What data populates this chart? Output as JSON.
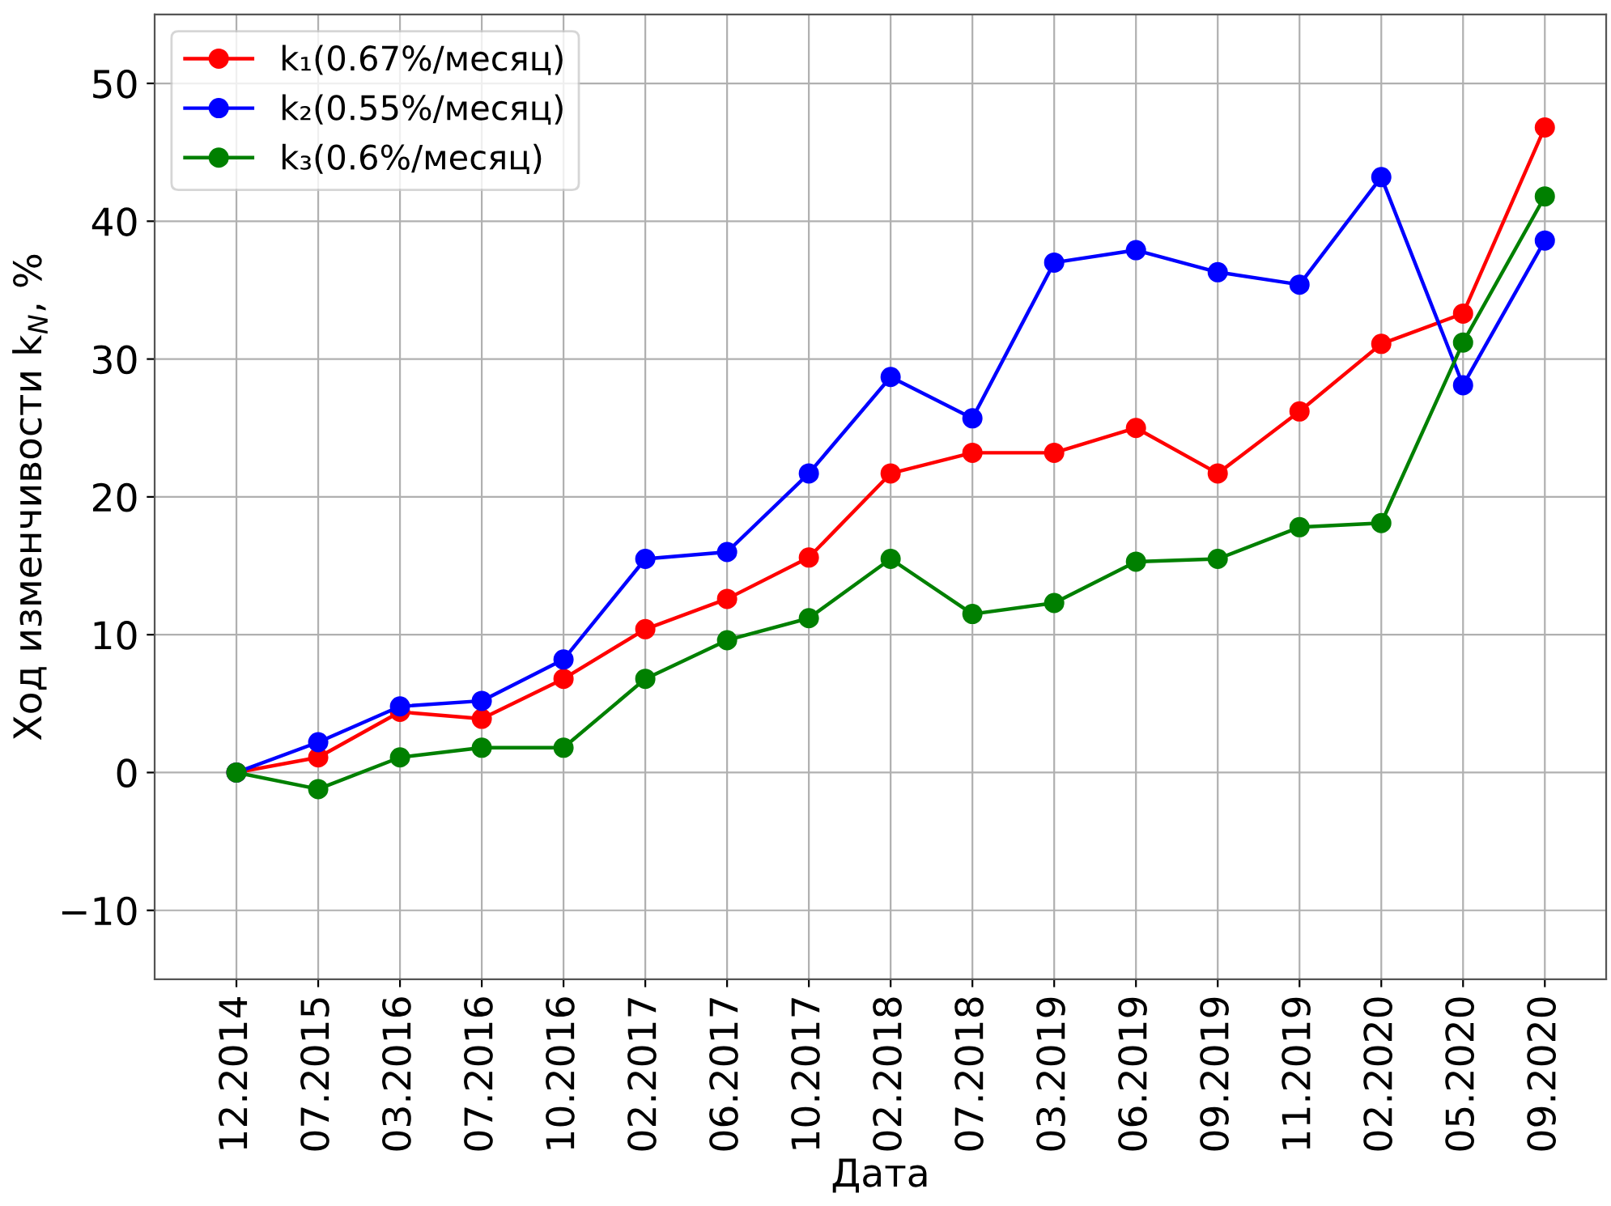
{
  "chart_data": {
    "type": "line",
    "xlabel": "Дата",
    "ylabel": "Ход изменчивости k$_{N}$, %",
    "categories": [
      "12.2014",
      "07.2015",
      "03.2016",
      "07.2016",
      "10.2016",
      "02.2017",
      "06.2017",
      "10.2017",
      "02.2018",
      "07.2018",
      "03.2019",
      "06.2019",
      "09.2019",
      "11.2019",
      "02.2020",
      "05.2020",
      "09.2020"
    ],
    "series": [
      {
        "name": "k₁(0.67%/месяц)",
        "color": "#ff0000",
        "values": [
          0,
          1.1,
          4.4,
          3.9,
          6.8,
          10.4,
          12.6,
          15.6,
          21.7,
          23.2,
          23.2,
          25.0,
          21.7,
          26.2,
          31.1,
          33.3,
          46.8
        ]
      },
      {
        "name": "k₂(0.55%/месяц)",
        "color": "#0000ff",
        "values": [
          0,
          2.2,
          4.8,
          5.2,
          8.2,
          15.5,
          16.0,
          21.7,
          28.7,
          25.7,
          37.0,
          37.9,
          36.3,
          35.4,
          43.2,
          28.1,
          38.6
        ]
      },
      {
        "name": "k₃(0.6%/месяц)",
        "color": "#008000",
        "values": [
          0,
          -1.2,
          1.1,
          1.8,
          1.8,
          6.8,
          9.6,
          11.2,
          15.5,
          11.5,
          12.3,
          15.3,
          15.5,
          17.8,
          18.1,
          31.2,
          41.8
        ]
      }
    ],
    "ylim": [
      -15,
      55
    ],
    "yticks": [
      -10,
      0,
      10,
      20,
      30,
      40,
      50
    ],
    "grid": true,
    "legend": "top left",
    "marker": "circle",
    "line_style": "solid"
  }
}
